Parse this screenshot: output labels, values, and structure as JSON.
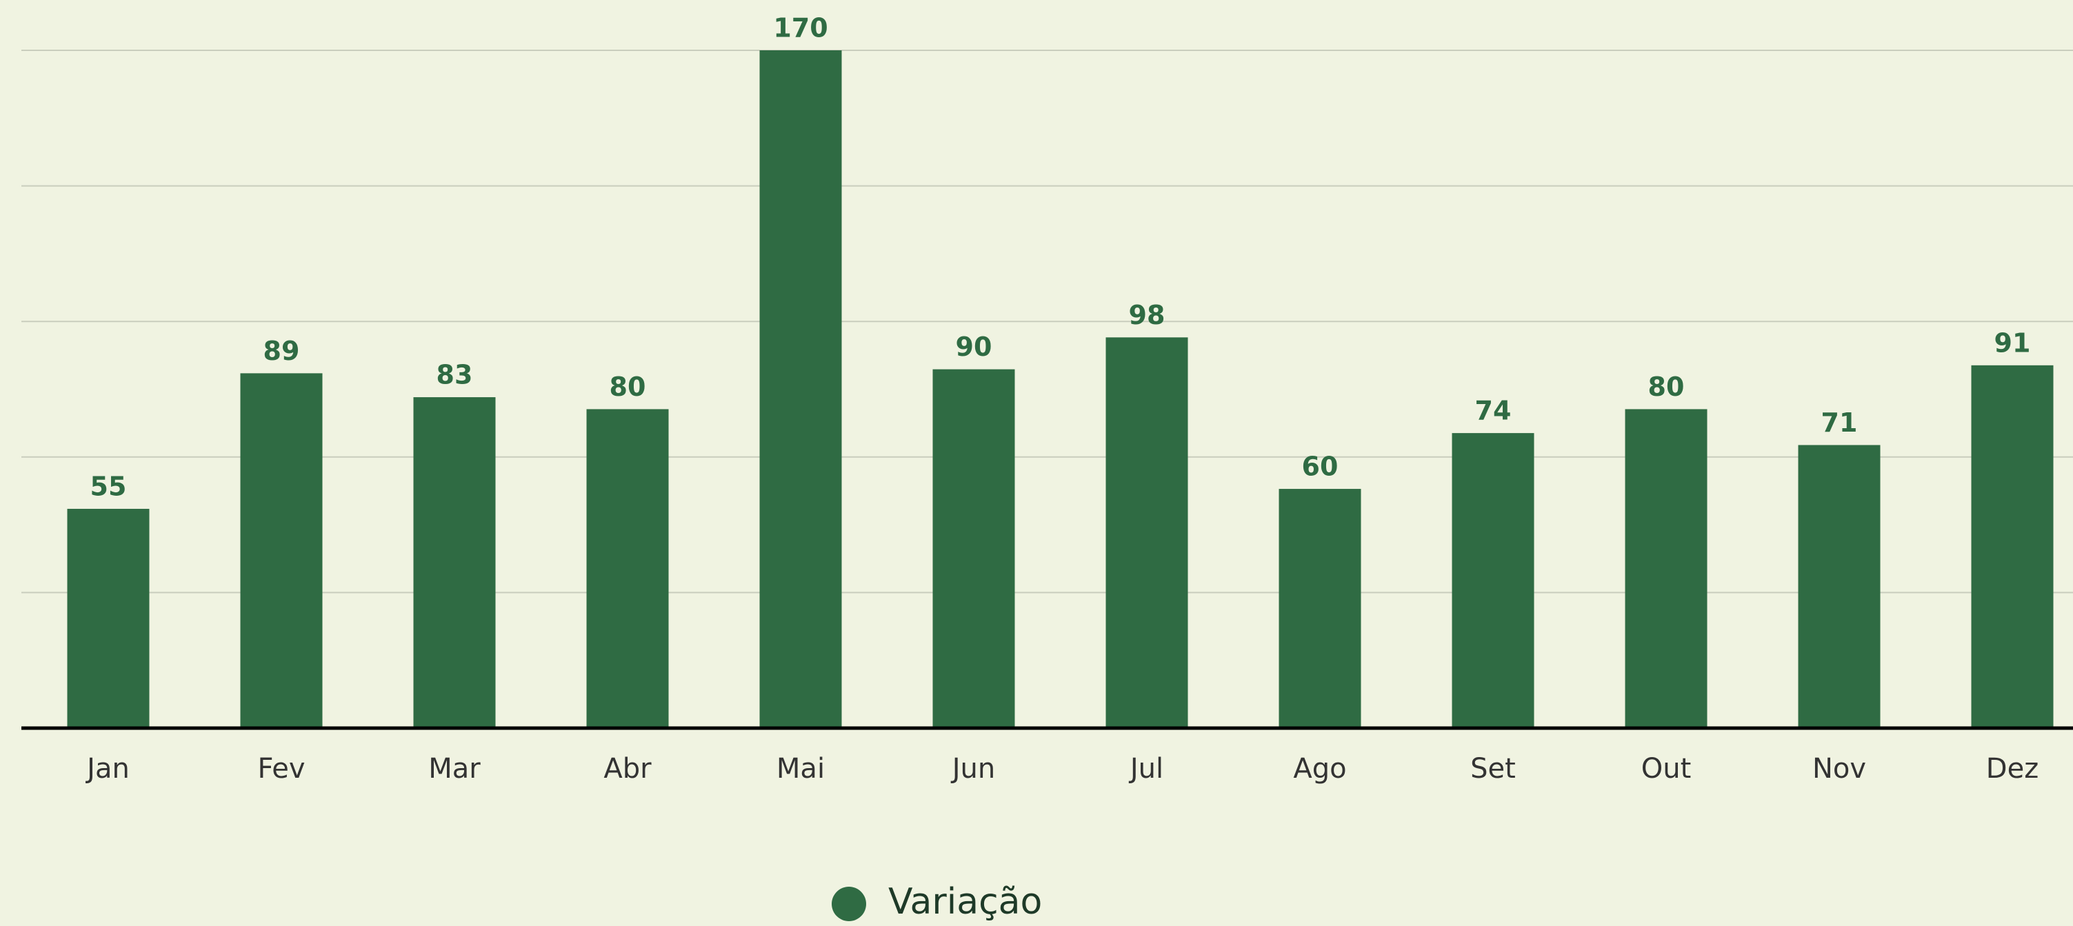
{
  "chart_data": {
    "type": "bar",
    "categories": [
      "Jan",
      "Fev",
      "Mar",
      "Abr",
      "Mai",
      "Jun",
      "Jul",
      "Ago",
      "Set",
      "Out",
      "Nov",
      "Dez"
    ],
    "series": [
      {
        "name": "Variação",
        "color": "#2f6b43",
        "values": [
          55,
          89,
          83,
          80,
          170,
          90,
          98,
          60,
          74,
          80,
          71,
          91
        ]
      }
    ],
    "ylim": [
      0,
      170
    ],
    "yticks": [
      0,
      34,
      68,
      102,
      136,
      170
    ],
    "grid": true,
    "legend": "bottom"
  }
}
